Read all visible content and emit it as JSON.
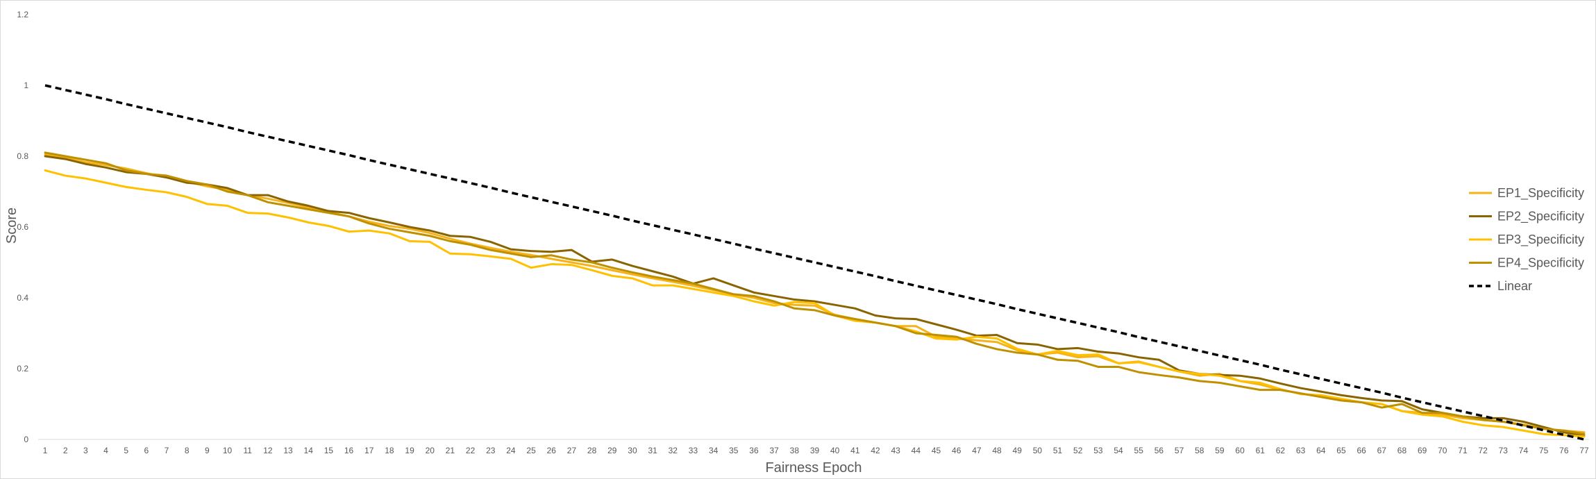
{
  "chart_data": {
    "type": "line",
    "title": "",
    "xlabel": "Fairness Epoch",
    "ylabel": "Score",
    "ylim": [
      0,
      1.2
    ],
    "yticks": [
      "0",
      "0.2",
      "0.4",
      "0.6",
      "0.8",
      "1",
      "1.2"
    ],
    "grid": false,
    "legend_position": "right",
    "x": [
      1,
      2,
      3,
      4,
      5,
      6,
      7,
      8,
      9,
      10,
      11,
      12,
      13,
      14,
      15,
      16,
      17,
      18,
      19,
      20,
      21,
      22,
      23,
      24,
      25,
      26,
      27,
      28,
      29,
      30,
      31,
      32,
      33,
      34,
      35,
      36,
      37,
      38,
      39,
      40,
      41,
      42,
      43,
      44,
      45,
      46,
      47,
      48,
      49,
      50,
      51,
      52,
      53,
      54,
      55,
      56,
      57,
      58,
      59,
      60,
      61,
      62,
      63,
      64,
      65,
      66,
      67,
      68,
      69,
      70,
      71,
      72,
      73,
      74,
      75,
      76,
      77
    ],
    "series": [
      {
        "name": "EP1_Specificity",
        "color": "#f5b31b",
        "dash": "solid",
        "values": [
          0.805,
          0.795,
          0.783,
          0.775,
          0.765,
          0.752,
          0.74,
          0.728,
          0.715,
          0.705,
          0.69,
          0.68,
          0.668,
          0.655,
          0.642,
          0.63,
          0.615,
          0.603,
          0.595,
          0.583,
          0.567,
          0.553,
          0.541,
          0.53,
          0.521,
          0.51,
          0.5,
          0.49,
          0.478,
          0.466,
          0.455,
          0.445,
          0.434,
          0.422,
          0.41,
          0.4,
          0.385,
          0.38,
          0.378,
          0.352,
          0.34,
          0.33,
          0.32,
          0.32,
          0.29,
          0.285,
          0.28,
          0.275,
          0.252,
          0.24,
          0.245,
          0.232,
          0.235,
          0.215,
          0.22,
          0.205,
          0.192,
          0.18,
          0.185,
          0.165,
          0.155,
          0.14,
          0.13,
          0.12,
          0.11,
          0.105,
          0.1,
          0.08,
          0.075,
          0.07,
          0.06,
          0.055,
          0.05,
          0.042,
          0.03,
          0.025,
          0.02
        ]
      },
      {
        "name": "EP2_Specificity",
        "color": "#8a6400",
        "dash": "solid",
        "values": [
          0.8,
          0.792,
          0.778,
          0.768,
          0.755,
          0.75,
          0.74,
          0.725,
          0.72,
          0.71,
          0.69,
          0.69,
          0.672,
          0.66,
          0.645,
          0.64,
          0.625,
          0.613,
          0.6,
          0.59,
          0.575,
          0.572,
          0.558,
          0.537,
          0.532,
          0.53,
          0.535,
          0.502,
          0.508,
          0.49,
          0.475,
          0.46,
          0.44,
          0.455,
          0.435,
          0.415,
          0.405,
          0.395,
          0.39,
          0.38,
          0.37,
          0.35,
          0.342,
          0.34,
          0.325,
          0.31,
          0.293,
          0.295,
          0.272,
          0.268,
          0.255,
          0.258,
          0.248,
          0.243,
          0.232,
          0.225,
          0.195,
          0.185,
          0.182,
          0.18,
          0.172,
          0.158,
          0.145,
          0.135,
          0.125,
          0.117,
          0.11,
          0.108,
          0.085,
          0.075,
          0.065,
          0.06,
          0.06,
          0.05,
          0.035,
          0.02,
          0.01
        ]
      },
      {
        "name": "EP3_Specificity",
        "color": "#ffc000",
        "dash": "solid",
        "values": [
          0.76,
          0.745,
          0.737,
          0.725,
          0.713,
          0.705,
          0.698,
          0.685,
          0.665,
          0.66,
          0.64,
          0.638,
          0.627,
          0.613,
          0.603,
          0.587,
          0.59,
          0.582,
          0.56,
          0.558,
          0.525,
          0.523,
          0.517,
          0.51,
          0.485,
          0.495,
          0.493,
          0.478,
          0.462,
          0.455,
          0.435,
          0.435,
          0.425,
          0.415,
          0.405,
          0.39,
          0.378,
          0.388,
          0.385,
          0.35,
          0.335,
          0.33,
          0.32,
          0.305,
          0.285,
          0.282,
          0.29,
          0.285,
          0.256,
          0.24,
          0.25,
          0.238,
          0.24,
          0.215,
          0.218,
          0.205,
          0.192,
          0.185,
          0.18,
          0.165,
          0.16,
          0.142,
          0.128,
          0.125,
          0.115,
          0.105,
          0.1,
          0.08,
          0.07,
          0.065,
          0.05,
          0.04,
          0.035,
          0.025,
          0.015,
          0.012,
          0.008
        ]
      },
      {
        "name": "EP4_Specificity",
        "color": "#bf9000",
        "dash": "solid",
        "values": [
          0.81,
          0.8,
          0.79,
          0.78,
          0.76,
          0.75,
          0.745,
          0.73,
          0.72,
          0.7,
          0.69,
          0.67,
          0.66,
          0.65,
          0.64,
          0.63,
          0.61,
          0.595,
          0.585,
          0.575,
          0.56,
          0.55,
          0.535,
          0.525,
          0.515,
          0.52,
          0.508,
          0.5,
          0.485,
          0.472,
          0.46,
          0.45,
          0.44,
          0.425,
          0.41,
          0.405,
          0.39,
          0.37,
          0.365,
          0.35,
          0.34,
          0.33,
          0.32,
          0.3,
          0.295,
          0.29,
          0.27,
          0.255,
          0.245,
          0.24,
          0.225,
          0.222,
          0.205,
          0.205,
          0.19,
          0.182,
          0.175,
          0.165,
          0.16,
          0.15,
          0.14,
          0.14,
          0.13,
          0.12,
          0.11,
          0.105,
          0.09,
          0.1,
          0.075,
          0.075,
          0.065,
          0.055,
          0.05,
          0.04,
          0.03,
          0.025,
          0.015
        ]
      },
      {
        "name": "Linear",
        "color": "#000000",
        "dash": "dashed",
        "values": [
          1.0,
          0.987,
          0.974,
          0.961,
          0.947,
          0.934,
          0.921,
          0.908,
          0.895,
          0.882,
          0.868,
          0.855,
          0.842,
          0.829,
          0.816,
          0.803,
          0.789,
          0.776,
          0.763,
          0.75,
          0.737,
          0.724,
          0.711,
          0.697,
          0.684,
          0.671,
          0.658,
          0.645,
          0.632,
          0.618,
          0.605,
          0.592,
          0.579,
          0.566,
          0.553,
          0.539,
          0.526,
          0.513,
          0.5,
          0.487,
          0.474,
          0.461,
          0.447,
          0.434,
          0.421,
          0.408,
          0.395,
          0.382,
          0.368,
          0.355,
          0.342,
          0.329,
          0.316,
          0.303,
          0.289,
          0.276,
          0.263,
          0.25,
          0.237,
          0.224,
          0.211,
          0.197,
          0.184,
          0.171,
          0.158,
          0.145,
          0.132,
          0.118,
          0.105,
          0.092,
          0.079,
          0.066,
          0.053,
          0.039,
          0.026,
          0.013,
          0.0
        ]
      }
    ]
  }
}
